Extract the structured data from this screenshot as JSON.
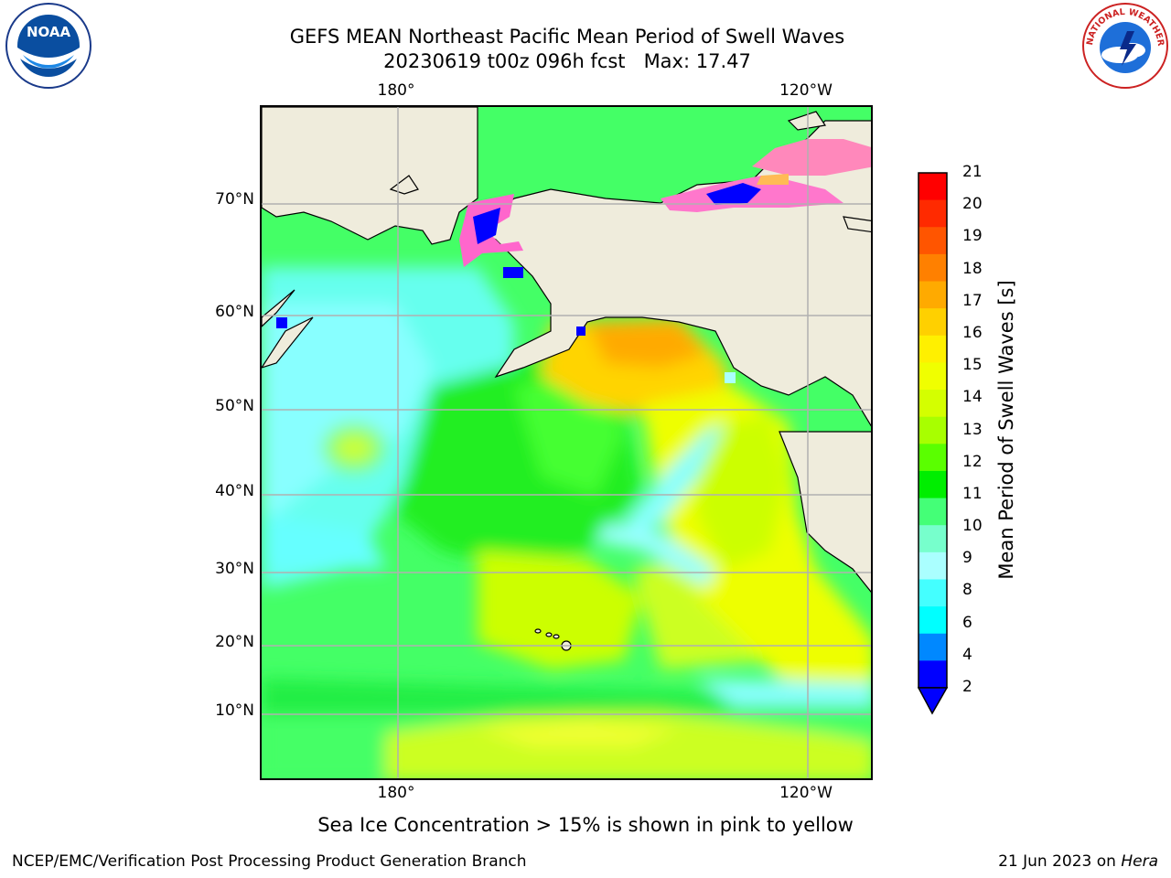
{
  "title": {
    "line1": "GEFS MEAN Northeast Pacific Mean Period of Swell Waves",
    "line2": "20230619 t00z 096h fcst   Max: 17.47"
  },
  "axes": {
    "lon_top": [
      "180°",
      "120°W"
    ],
    "lon_bottom": [
      "180°",
      "120°W"
    ],
    "lat": [
      "70°N",
      "60°N",
      "50°N",
      "40°N",
      "30°N",
      "20°N",
      "10°N"
    ]
  },
  "colorbar": {
    "label": "Mean Period of Swell Waves [s]",
    "ticks": [
      "21",
      "20",
      "19",
      "18",
      "17",
      "16",
      "15",
      "14",
      "13",
      "12",
      "11",
      "10",
      "9",
      "8",
      "6",
      "4",
      "2"
    ],
    "colors_top_to_bottom": [
      "#ff0000",
      "#ff2a00",
      "#ff5500",
      "#ff8000",
      "#ffaa00",
      "#ffd000",
      "#fff000",
      "#f0ff00",
      "#d4ff00",
      "#a8ff00",
      "#5aff00",
      "#00ee00",
      "#44ff77",
      "#77ffcc",
      "#aaffff",
      "#44ffff",
      "#00ffff",
      "#0088ff",
      "#0000ff"
    ]
  },
  "caption": "Sea Ice Concentration > 15% is shown in pink to yellow",
  "footer": {
    "left": "NCEP/EMC/Verification Post Processing Product Generation Branch",
    "date": "21 Jun 2023 on ",
    "host": "Hera"
  },
  "logos": {
    "noaa_text": "NOAA",
    "nws_text": "NATIONAL WEATHER SERVICE"
  },
  "colors": {
    "land": "#efecdc",
    "grid": "#b0b0b0",
    "ice_pink": "#ff66cc"
  }
}
